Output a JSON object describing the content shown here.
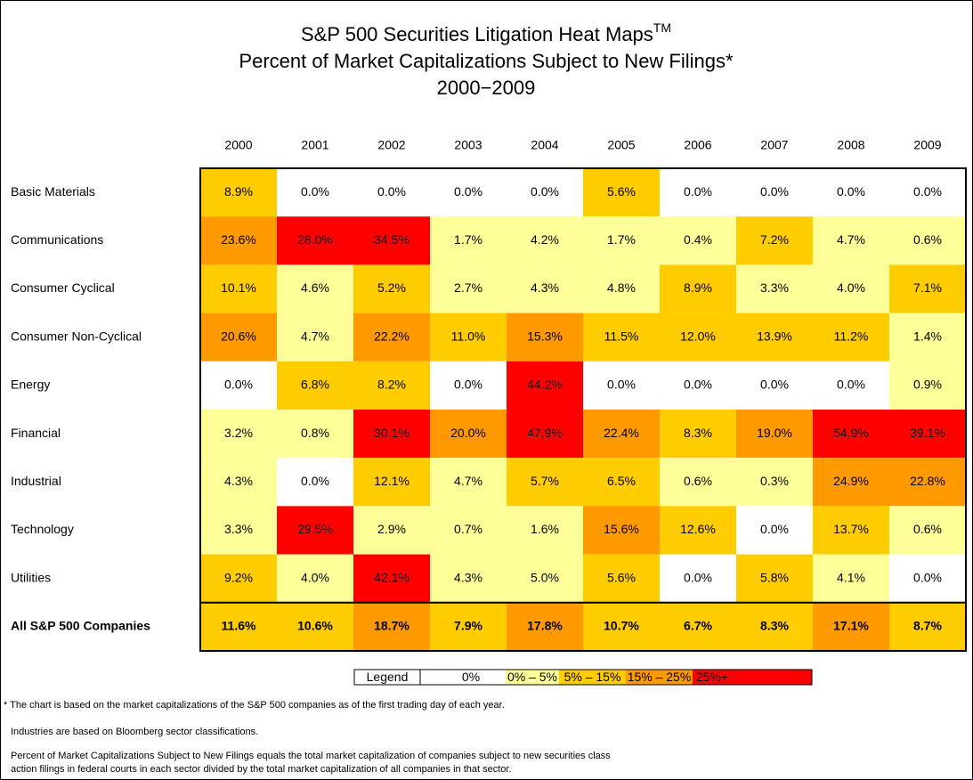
{
  "chart_data": {
    "type": "heatmap",
    "title": "S&P 500 Securities Litigation Heat Maps",
    "title_mark": "TM",
    "subtitle": "Percent of Market Capitalizations Subject to New Filings*",
    "period": "2000−2009",
    "columns": [
      "2000",
      "2001",
      "2002",
      "2003",
      "2004",
      "2005",
      "2006",
      "2007",
      "2008",
      "2009"
    ],
    "rows": [
      "Basic Materials",
      "Communications",
      "Consumer Cyclical",
      "Consumer Non-Cyclical",
      "Energy",
      "Financial",
      "Industrial",
      "Technology",
      "Utilities",
      "All S&P 500 Companies"
    ],
    "values": [
      [
        8.9,
        0.0,
        0.0,
        0.0,
        0.0,
        5.6,
        0.0,
        0.0,
        0.0,
        0.0
      ],
      [
        23.6,
        28.0,
        34.5,
        1.7,
        4.2,
        1.7,
        0.4,
        7.2,
        4.7,
        0.6
      ],
      [
        10.1,
        4.6,
        5.2,
        2.7,
        4.3,
        4.8,
        8.9,
        3.3,
        4.0,
        7.1
      ],
      [
        20.6,
        4.7,
        22.2,
        11.0,
        15.3,
        11.5,
        12.0,
        13.9,
        11.2,
        1.4
      ],
      [
        0.0,
        6.8,
        8.2,
        0.0,
        44.2,
        0.0,
        0.0,
        0.0,
        0.0,
        0.9
      ],
      [
        3.2,
        0.8,
        30.1,
        20.0,
        47.9,
        22.4,
        8.3,
        19.0,
        54.9,
        39.1
      ],
      [
        4.3,
        0.0,
        12.1,
        4.7,
        5.7,
        6.5,
        0.6,
        0.3,
        24.9,
        22.8
      ],
      [
        3.3,
        29.5,
        2.9,
        0.7,
        1.6,
        15.6,
        12.6,
        0.0,
        13.7,
        0.6
      ],
      [
        9.2,
        4.0,
        42.1,
        4.3,
        5.0,
        5.6,
        0.0,
        5.8,
        4.1,
        0.0
      ],
      [
        11.6,
        10.6,
        18.7,
        7.9,
        17.8,
        10.7,
        6.7,
        8.3,
        17.1,
        8.7
      ]
    ],
    "value_labels": [
      [
        "8.9%",
        "0.0%",
        "0.0%",
        "0.0%",
        "0.0%",
        "5.6%",
        "0.0%",
        "0.0%",
        "0.0%",
        "0.0%"
      ],
      [
        "23.6%",
        "28.0%",
        "34.5%",
        "1.7%",
        "4.2%",
        "1.7%",
        "0.4%",
        "7.2%",
        "4.7%",
        "0.6%"
      ],
      [
        "10.1%",
        "4.6%",
        "5.2%",
        "2.7%",
        "4.3%",
        "4.8%",
        "8.9%",
        "3.3%",
        "4.0%",
        "7.1%"
      ],
      [
        "20.6%",
        "4.7%",
        "22.2%",
        "11.0%",
        "15.3%",
        "11.5%",
        "12.0%",
        "13.9%",
        "11.2%",
        "1.4%"
      ],
      [
        "0.0%",
        "6.8%",
        "8.2%",
        "0.0%",
        "44.2%",
        "0.0%",
        "0.0%",
        "0.0%",
        "0.0%",
        "0.9%"
      ],
      [
        "3.2%",
        "0.8%",
        "30.1%",
        "20.0%",
        "47.9%",
        "22.4%",
        "8.3%",
        "19.0%",
        "54.9%",
        "39.1%"
      ],
      [
        "4.3%",
        "0.0%",
        "12.1%",
        "4.7%",
        "5.7%",
        "6.5%",
        "0.6%",
        "0.3%",
        "24.9%",
        "22.8%"
      ],
      [
        "3.3%",
        "29.5%",
        "2.9%",
        "0.7%",
        "1.6%",
        "15.6%",
        "12.6%",
        "0.0%",
        "13.7%",
        "0.6%"
      ],
      [
        "9.2%",
        "4.0%",
        "42.1%",
        "4.3%",
        "5.0%",
        "5.6%",
        "0.0%",
        "5.8%",
        "4.1%",
        "0.0%"
      ],
      [
        "11.6%",
        "10.6%",
        "18.7%",
        "7.9%",
        "17.8%",
        "10.7%",
        "6.7%",
        "8.3%",
        "17.1%",
        "8.7%"
      ]
    ],
    "thresholds": [
      0,
      5,
      15,
      25
    ],
    "legend": {
      "title": "Legend",
      "items": [
        {
          "label": "0%",
          "color": "#ffffff"
        },
        {
          "label": "0% – 5%",
          "color": "#ffff99"
        },
        {
          "label": "5% – 15%",
          "color": "#ffcc00"
        },
        {
          "label": "15% – 25%",
          "color": "#ff9900"
        },
        {
          "label": "25%+",
          "color": "#ff0000"
        }
      ]
    },
    "footnotes": [
      "* The chart is based on the market capitalizations of the S&P 500 companies as of the first trading day of each year.",
      "Industries are based on Bloomberg sector classifications.",
      "Percent of Market Capitalizations Subject to New Filings equals the total market capitalization of companies subject to new securities class",
      "action filings in federal courts in each sector divided by the total market capitalization of all companies in that sector."
    ]
  }
}
